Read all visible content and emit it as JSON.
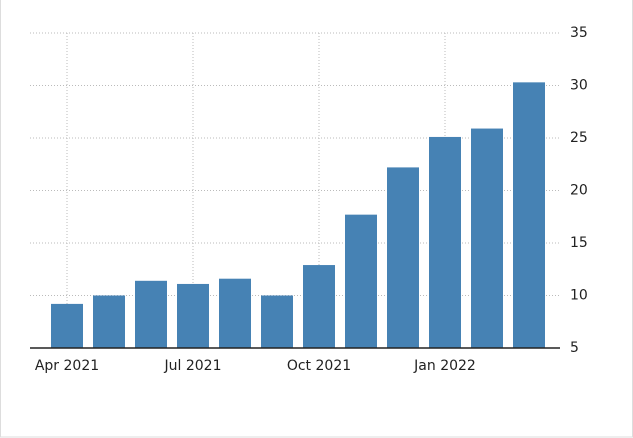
{
  "chart_data": {
    "type": "bar",
    "categories": [
      "Apr 2021",
      null,
      null,
      "Jul 2021",
      null,
      null,
      "Oct 2021",
      null,
      null,
      "Jan 2022",
      null,
      null
    ],
    "values": [
      9.2,
      10.0,
      11.4,
      11.1,
      11.6,
      10.0,
      12.9,
      17.7,
      22.2,
      25.1,
      25.9,
      30.3
    ],
    "color": "#4682b4",
    "ylim": [
      5,
      35
    ],
    "yticks": [
      5,
      10,
      15,
      20,
      25,
      30,
      35
    ],
    "grid": true,
    "y_axis_side": "right"
  }
}
